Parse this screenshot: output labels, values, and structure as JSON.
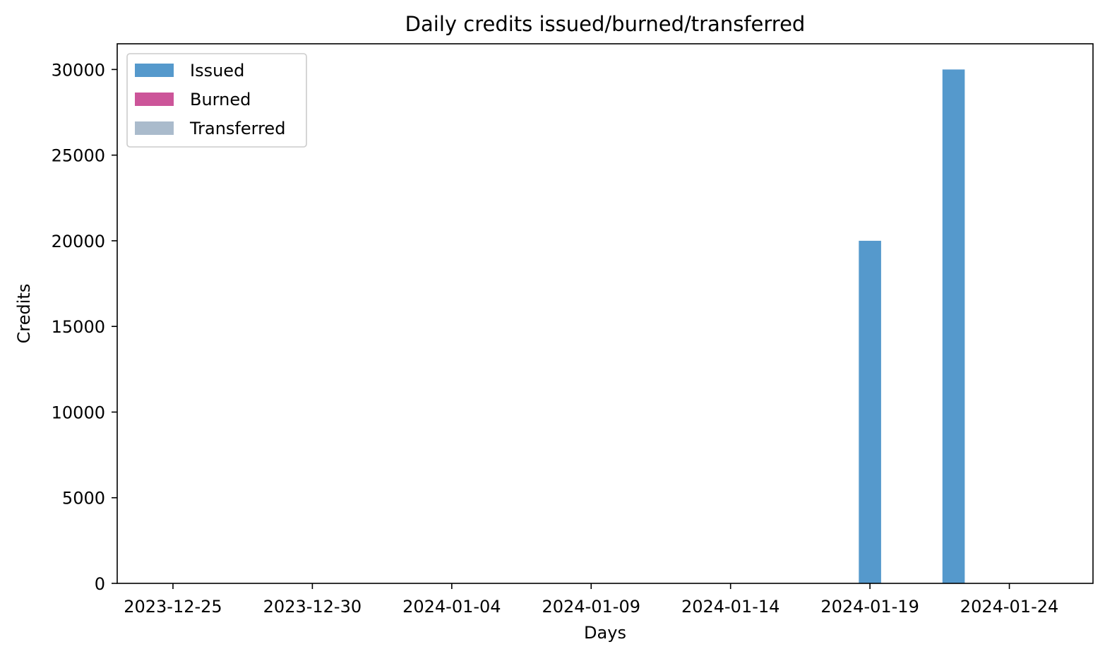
{
  "chart_data": {
    "type": "bar",
    "title": "Daily credits issued/burned/transferred",
    "xlabel": "Days",
    "ylabel": "Credits",
    "x_axis_type": "date",
    "xlim": [
      "2023-12-23",
      "2024-01-27"
    ],
    "ylim": [
      0,
      31500
    ],
    "x_ticks": [
      "2023-12-25",
      "2023-12-30",
      "2024-01-04",
      "2024-01-09",
      "2024-01-14",
      "2024-01-19",
      "2024-01-24"
    ],
    "y_ticks": [
      0,
      5000,
      10000,
      15000,
      20000,
      25000,
      30000
    ],
    "grid": false,
    "legend_position": "top-left",
    "series": [
      {
        "name": "Issued",
        "color": "#5599cc",
        "points": [
          {
            "date": "2024-01-19",
            "value": 20000
          },
          {
            "date": "2024-01-22",
            "value": 30000
          }
        ]
      },
      {
        "name": "Burned",
        "color": "#cc5599",
        "points": []
      },
      {
        "name": "Transferred",
        "color": "#aabbcc",
        "points": []
      }
    ]
  }
}
